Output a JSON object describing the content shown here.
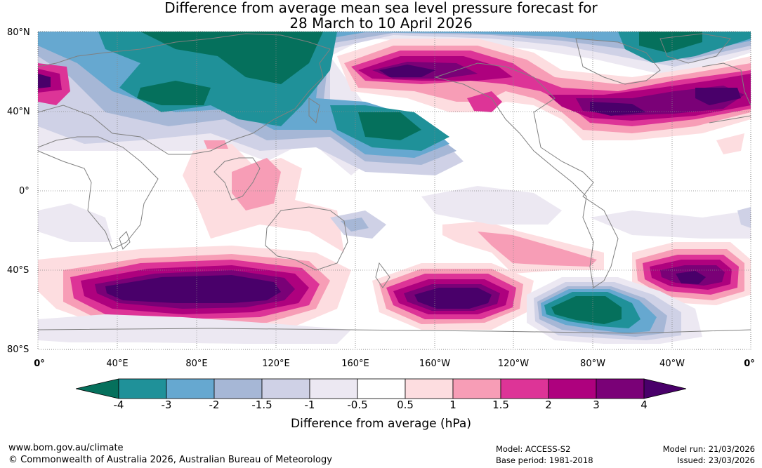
{
  "title": {
    "line1": "Difference from average mean sea level pressure forecast for",
    "line2": "28 March to 10 April 2026"
  },
  "map": {
    "lat_labels": [
      "80°N",
      "40°N",
      "0°",
      "40°S",
      "80°S"
    ],
    "lon_labels": [
      "0°",
      "40°E",
      "80°E",
      "120°E",
      "160°E",
      "160°W",
      "120°W",
      "80°W",
      "40°W",
      "0°"
    ],
    "coastline_color": "#808080",
    "grid_style": "dotted"
  },
  "legend": {
    "ticks": [
      "-4",
      "-3",
      "-2",
      "-1.5",
      "-1",
      "-0.5",
      "0.5",
      "1",
      "1.5",
      "2",
      "3",
      "4"
    ],
    "colors": [
      "#05705c",
      "#1f9199",
      "#66a8d0",
      "#a6b7d6",
      "#cfd1e6",
      "#ece8f2",
      "#ffffff",
      "#fddde0",
      "#f79db6",
      "#dd3497",
      "#ae017e",
      "#7a0177",
      "#49006a"
    ],
    "label": "Difference from average (hPa)"
  },
  "footer": {
    "website": "www.bom.gov.au/climate",
    "copyright": "© Commonwealth of Australia 2026, Australian Bureau of Meteorology",
    "model": "Model: ACCESS-S2",
    "base_period": "Base period: 1981-2018",
    "model_run": "Model run: 21/03/2026",
    "issued": "Issued: 23/03/2026"
  }
}
